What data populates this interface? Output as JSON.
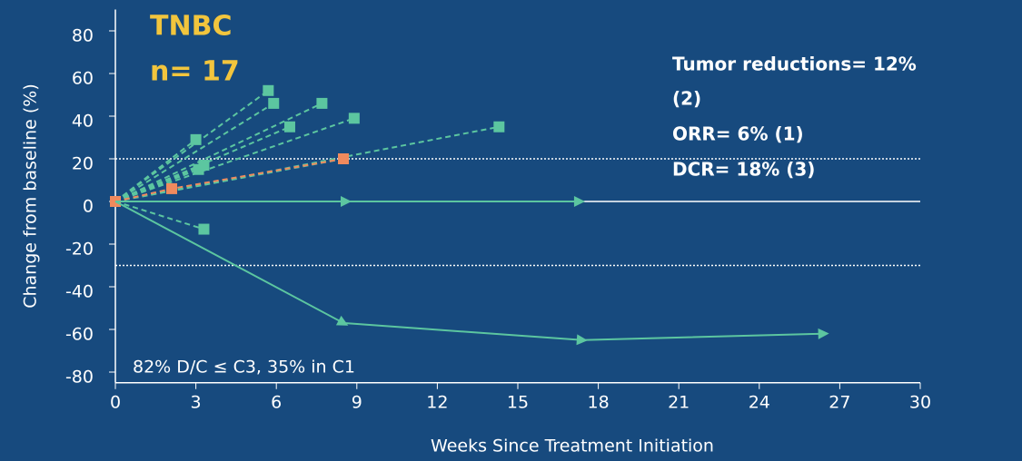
{
  "chart_data": {
    "type": "spider",
    "title": "TNBC",
    "subtitle": "n= 17",
    "annotations": [
      "Tumor reductions= 12%",
      "(2)",
      "ORR= 6% (1)",
      "DCR= 18% (3)"
    ],
    "footnote": "82% D/C ≤ C3, 35% in C1",
    "x_label": "Weeks Since Treatment Initiation",
    "y_label": "Change from baseline (%)",
    "xlim": [
      0,
      30
    ],
    "xticks": [
      0,
      3,
      6,
      9,
      12,
      15,
      18,
      21,
      24,
      27,
      30
    ],
    "ylim": [
      -85,
      90
    ],
    "yticks": [
      -80,
      -60,
      -40,
      -20,
      0,
      20,
      40,
      60,
      80
    ],
    "ref_lines": [
      {
        "value": 20,
        "style": "dotted"
      },
      {
        "value": 0,
        "style": "solid"
      },
      {
        "value": -30,
        "style": "dotted"
      }
    ],
    "series": [
      {
        "x": [
          0,
          5.7
        ],
        "values": [
          0,
          52
        ],
        "color": "#5cc6a0",
        "style": "dashed",
        "marker": "square"
      },
      {
        "x": [
          0,
          5.9
        ],
        "values": [
          0,
          46
        ],
        "color": "#5cc6a0",
        "style": "dashed",
        "marker": "square"
      },
      {
        "x": [
          0,
          3.0
        ],
        "values": [
          0,
          29
        ],
        "color": "#5cc6a0",
        "style": "dashed",
        "marker": "square"
      },
      {
        "x": [
          0,
          6.5
        ],
        "values": [
          0,
          35
        ],
        "color": "#5cc6a0",
        "style": "dashed",
        "marker": "square"
      },
      {
        "x": [
          0,
          7.7
        ],
        "values": [
          0,
          46
        ],
        "color": "#5cc6a0",
        "style": "dashed",
        "marker": "square"
      },
      {
        "x": [
          0,
          8.9
        ],
        "values": [
          0,
          39
        ],
        "color": "#5cc6a0",
        "style": "dashed",
        "marker": "square"
      },
      {
        "x": [
          0,
          14.3
        ],
        "values": [
          0,
          35
        ],
        "color": "#5cc6a0",
        "style": "dashed",
        "marker": "square"
      },
      {
        "x": [
          0,
          3.3
        ],
        "values": [
          0,
          17
        ],
        "color": "#5cc6a0",
        "style": "dashed",
        "marker": "square"
      },
      {
        "x": [
          0,
          3.1
        ],
        "values": [
          0,
          15
        ],
        "color": "#5cc6a0",
        "style": "dashed",
        "marker": "square"
      },
      {
        "x": [
          0,
          8.5
        ],
        "values": [
          0,
          20
        ],
        "color": "#5cc6a0",
        "style": "dashed",
        "marker": "square"
      },
      {
        "x": [
          0,
          3.3
        ],
        "values": [
          0,
          -13
        ],
        "color": "#5cc6a0",
        "style": "dashed",
        "marker": "square"
      },
      {
        "x": [
          0,
          2.1,
          8.5
        ],
        "values": [
          0,
          6,
          20
        ],
        "color": "#f08a5d",
        "style": "dashed",
        "marker": "square"
      },
      {
        "x": [
          0,
          8.6,
          17.3
        ],
        "values": [
          0,
          0,
          0
        ],
        "color": "#5cc6a0",
        "style": "solid",
        "marker": "arrow"
      },
      {
        "x": [
          0,
          8.5,
          17.4,
          26.4
        ],
        "values": [
          0,
          -57,
          -65,
          -62
        ],
        "color": "#5cc6a0",
        "style": "solid",
        "marker": "arrow"
      }
    ]
  }
}
